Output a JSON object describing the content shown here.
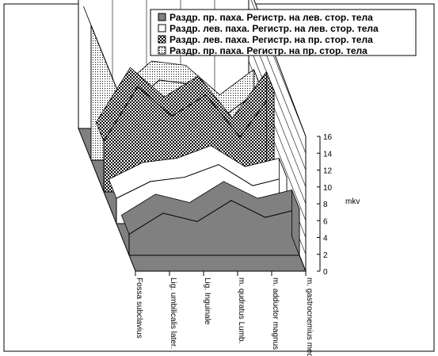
{
  "chart_data": {
    "type": "area3d",
    "categories": [
      "Fossa subclavius",
      "Lig. umbilicalis later.",
      "Lig. Inguinale",
      "m. qudratus Lumb.",
      "m. adductor magnus",
      "m. gastrocnemius med."
    ],
    "series": [
      {
        "name": "Раздр. пр. паха. Регистр. на лев. стор. тела",
        "color": "#808080",
        "fill_style": "solid",
        "values": [
          2.5,
          5,
          4,
          6.5,
          4.5,
          5.5
        ]
      },
      {
        "name": "Раздр. лев. паха. Регистр. на лев. стор. тела",
        "color": "#ffffff",
        "fill_style": "solid",
        "values": [
          3,
          5,
          5.5,
          7,
          4.5,
          5.5
        ]
      },
      {
        "name": "Раздр. лев. паха. Регистр. на пр. стор. тела",
        "color": "#000000",
        "fill_style": "checker",
        "values": [
          6,
          12.5,
          9,
          11.5,
          6.5,
          12
        ]
      },
      {
        "name": "Раздр. пр. паха. Регистр. на пр. стор. тела",
        "color": "#000000",
        "fill_style": "dots",
        "values": [
          16,
          6,
          9.5,
          9,
          5.5,
          8.5
        ]
      }
    ],
    "z_label": "mkv",
    "zlim": [
      0,
      16
    ],
    "zticks": [
      0,
      2,
      4,
      6,
      8,
      10,
      12,
      14,
      16
    ]
  }
}
